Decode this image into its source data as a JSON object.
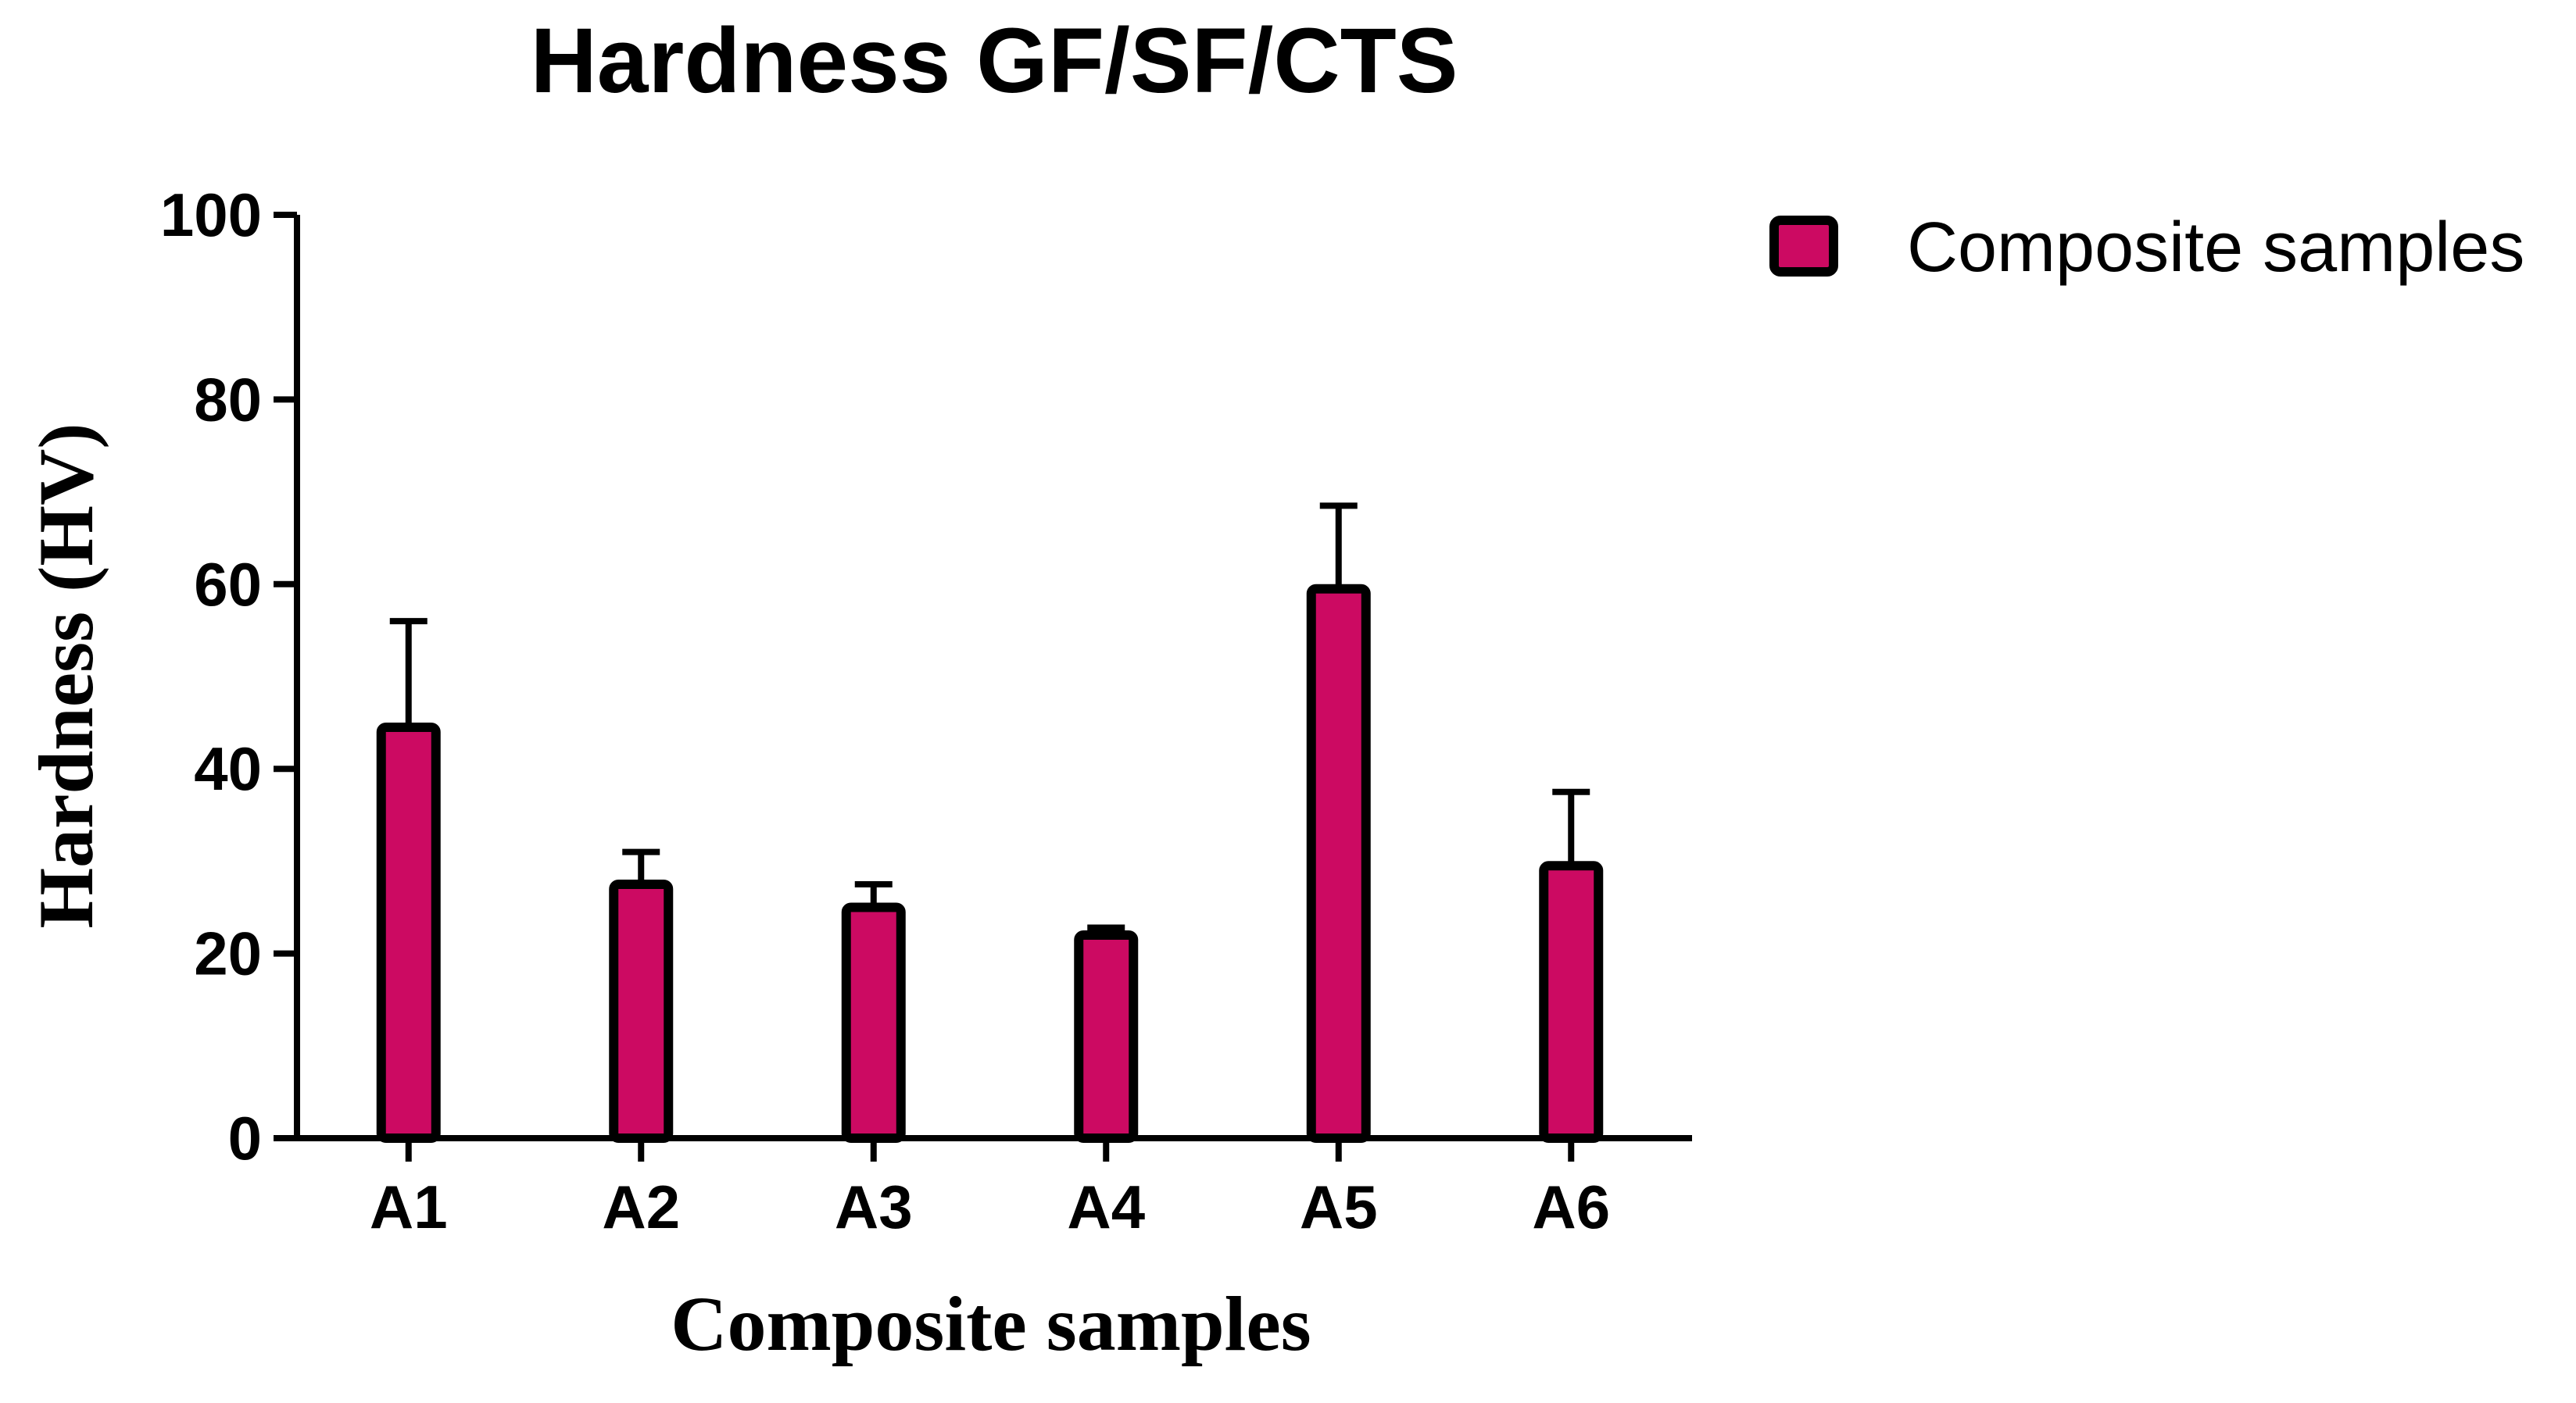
{
  "chart_data": {
    "type": "bar",
    "title": "Hardness GF/SF/CTS",
    "xlabel": "Composite samples",
    "ylabel": "Hardness (HV)",
    "categories": [
      "A1",
      "A2",
      "A3",
      "A4",
      "A5",
      "A6"
    ],
    "series": [
      {
        "name": "Composite samples",
        "values": [
          44.5,
          27.5,
          25.0,
          22.0,
          59.5,
          29.5
        ],
        "errors": [
          11.5,
          3.5,
          2.5,
          0.8,
          9.0,
          8.0
        ]
      }
    ],
    "ylim": [
      0,
      100
    ],
    "yticks": [
      "0",
      "20",
      "40",
      "60",
      "80",
      "100"
    ],
    "grid": false,
    "legend_position": "top-right",
    "colors": {
      "bar_fill": "#cc0a62",
      "bar_stroke": "#000000",
      "axis": "#000000"
    }
  }
}
